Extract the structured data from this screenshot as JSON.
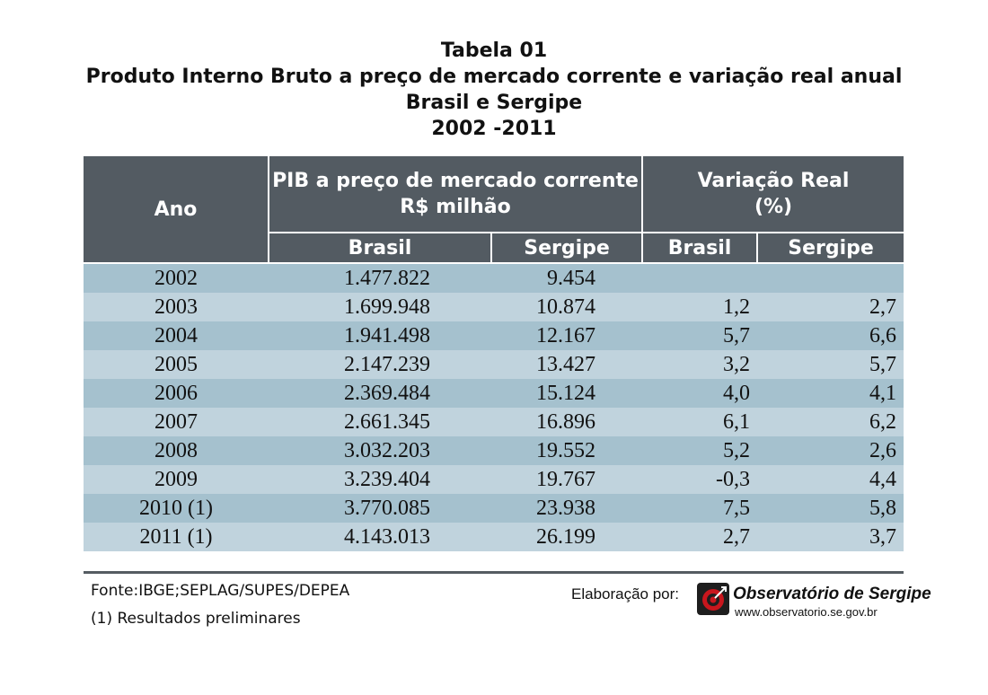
{
  "title": {
    "line1": "Tabela 01",
    "line2": "Produto Interno Bruto a preço de mercado corrente e variação real anual",
    "line3": "Brasil e Sergipe",
    "line4": "2002 -2011"
  },
  "table": {
    "header": {
      "ano": "Ano",
      "pib_line1": "PIB a preço de mercado corrente",
      "pib_line2": "R$ milhão",
      "var_line1": "Variação Real",
      "var_line2": "(%)",
      "brasil": "Brasil",
      "sergipe": "Sergipe",
      "brasil2": "Brasil",
      "sergipe2": "Sergipe"
    },
    "rows": [
      {
        "ano": "2002",
        "pib_brasil": "1.477.822",
        "pib_sergipe": "9.454",
        "var_brasil": "",
        "var_sergipe": ""
      },
      {
        "ano": "2003",
        "pib_brasil": "1.699.948",
        "pib_sergipe": "10.874",
        "var_brasil": "1,2",
        "var_sergipe": "2,7"
      },
      {
        "ano": "2004",
        "pib_brasil": "1.941.498",
        "pib_sergipe": "12.167",
        "var_brasil": "5,7",
        "var_sergipe": "6,6"
      },
      {
        "ano": "2005",
        "pib_brasil": "2.147.239",
        "pib_sergipe": "13.427",
        "var_brasil": "3,2",
        "var_sergipe": "5,7"
      },
      {
        "ano": "2006",
        "pib_brasil": "2.369.484",
        "pib_sergipe": "15.124",
        "var_brasil": "4,0",
        "var_sergipe": "4,1"
      },
      {
        "ano": "2007",
        "pib_brasil": "2.661.345",
        "pib_sergipe": "16.896",
        "var_brasil": "6,1",
        "var_sergipe": "6,2"
      },
      {
        "ano": "2008",
        "pib_brasil": "3.032.203",
        "pib_sergipe": "19.552",
        "var_brasil": "5,2",
        "var_sergipe": "2,6"
      },
      {
        "ano": "2009",
        "pib_brasil": "3.239.404",
        "pib_sergipe": "19.767",
        "var_brasil": "-0,3",
        "var_sergipe": "4,4"
      },
      {
        "ano": "2010 (1)",
        "pib_brasil": "3.770.085",
        "pib_sergipe": "23.938",
        "var_brasil": "7,5",
        "var_sergipe": "5,8"
      },
      {
        "ano": "2011 (1)",
        "pib_brasil": "4.143.013",
        "pib_sergipe": "26.199",
        "var_brasil": "2,7",
        "var_sergipe": "3,7"
      }
    ]
  },
  "footer": {
    "source": "Fonte:IBGE;SEPLAG/SUPES/DEPEA",
    "note": "(1) Resultados preliminares",
    "elaboracao": "Elaboração por:",
    "org_name": "Observatório de Sergipe",
    "org_url": "www.observatorio.se.gov.br",
    "logo_icon": "target-icon"
  },
  "colors": {
    "header_bg": "#535b62",
    "row_dark": "#a5c1ce",
    "row_light": "#c0d3dd",
    "logo_red": "#c8161d"
  }
}
